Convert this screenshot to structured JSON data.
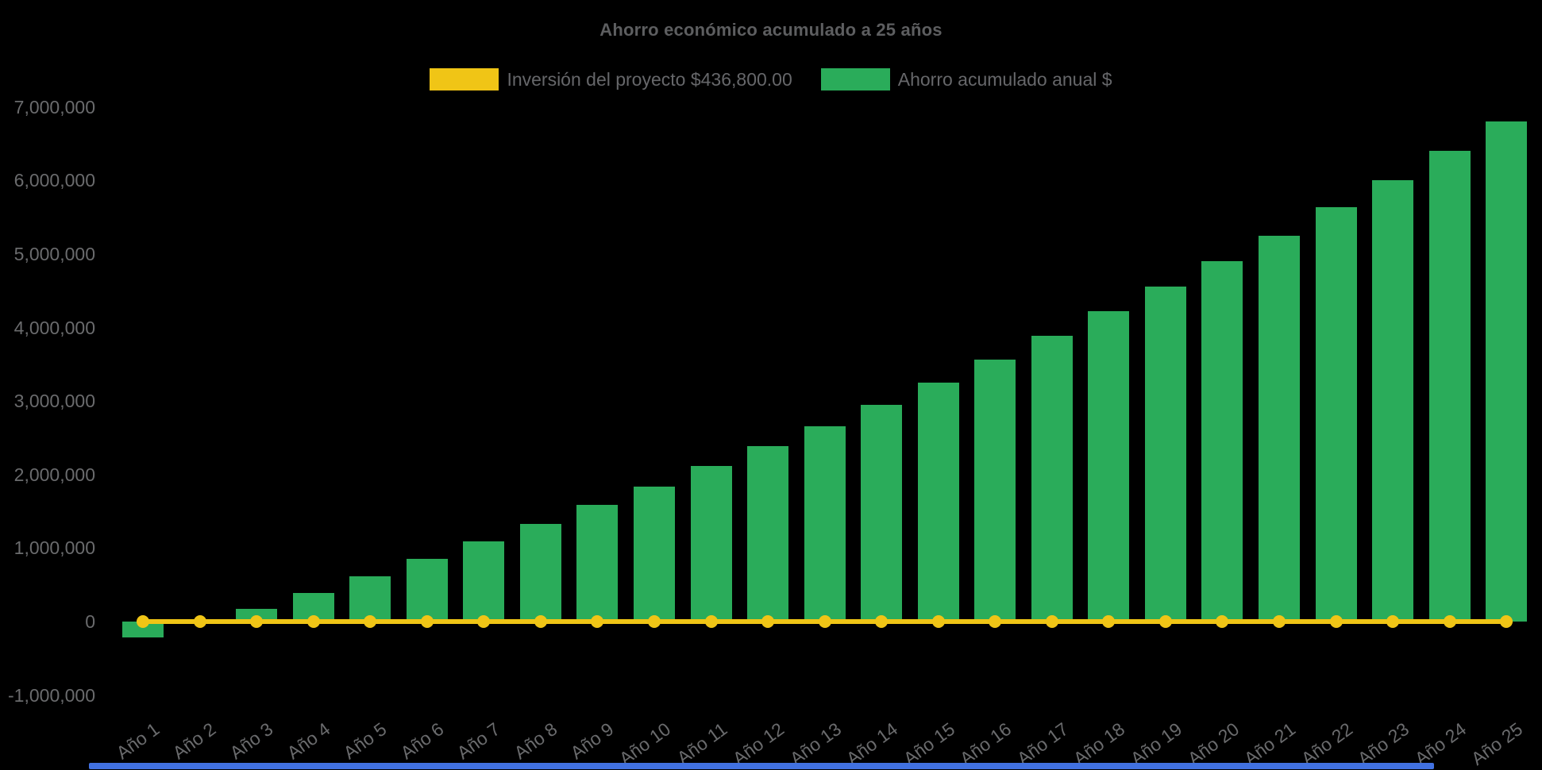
{
  "title": "Ahorro económico acumulado a 25 años",
  "legend": {
    "items": [
      {
        "label": "Inversión del proyecto $436,800.00",
        "color": "#f0c516"
      },
      {
        "label": "Ahorro acumulado anual $",
        "color": "#2aac5a"
      }
    ]
  },
  "colors": {
    "background": "#000000",
    "title_text": "#5d5e60",
    "axis_text": "#6a6b6d",
    "legend_text": "#66676a",
    "investment_yellow": "#f0c516",
    "savings_green": "#2aac5a",
    "scrollbar_blue": "#4171e1"
  },
  "chart_data": {
    "type": "bar",
    "title": "Ahorro económico acumulado a 25 años",
    "xlabel": "",
    "ylabel": "",
    "ylim": [
      -1000000,
      7000000
    ],
    "grid": false,
    "legend_position": "top",
    "background": "#000000",
    "categories": [
      "Año 1",
      "Año 2",
      "Año 3",
      "Año 4",
      "Año 5",
      "Año 6",
      "Año 7",
      "Año 8",
      "Año 9",
      "Año 10",
      "Año 11",
      "Año 12",
      "Año 13",
      "Año 14",
      "Año 15",
      "Año 16",
      "Año 17",
      "Año 18",
      "Año 19",
      "Año 20",
      "Año 21",
      "Año 22",
      "Año 23",
      "Año 24",
      "Año 25"
    ],
    "y_ticks": [
      {
        "label": "7,000,000",
        "value": 7000000
      },
      {
        "label": "6,000,000",
        "value": 6000000
      },
      {
        "label": "5,000,000",
        "value": 5000000
      },
      {
        "label": "4,000,000",
        "value": 4000000
      },
      {
        "label": "3,000,000",
        "value": 3000000
      },
      {
        "label": "2,000,000",
        "value": 2000000
      },
      {
        "label": "1,000,000",
        "value": 1000000
      },
      {
        "label": "0",
        "value": 0
      },
      {
        "label": "-1,000,000",
        "value": -1000000
      }
    ],
    "series": [
      {
        "name": "Inversión del proyecto $436,800.00",
        "type": "line",
        "color": "#f0c516",
        "marker": "circle",
        "values": [
          0,
          0,
          0,
          0,
          0,
          0,
          0,
          0,
          0,
          0,
          0,
          0,
          0,
          0,
          0,
          0,
          0,
          0,
          0,
          0,
          0,
          0,
          0,
          0,
          0
        ]
      },
      {
        "name": "Ahorro acumulado anual $",
        "type": "bar",
        "color": "#2aac5a",
        "values": [
          -220000,
          20000,
          175000,
          390000,
          620000,
          855000,
          1090000,
          1330000,
          1590000,
          1840000,
          2120000,
          2390000,
          2660000,
          2950000,
          3250000,
          3560000,
          3890000,
          4220000,
          4560000,
          4900000,
          5250000,
          5640000,
          6000000,
          6400000,
          6800000
        ]
      }
    ]
  }
}
